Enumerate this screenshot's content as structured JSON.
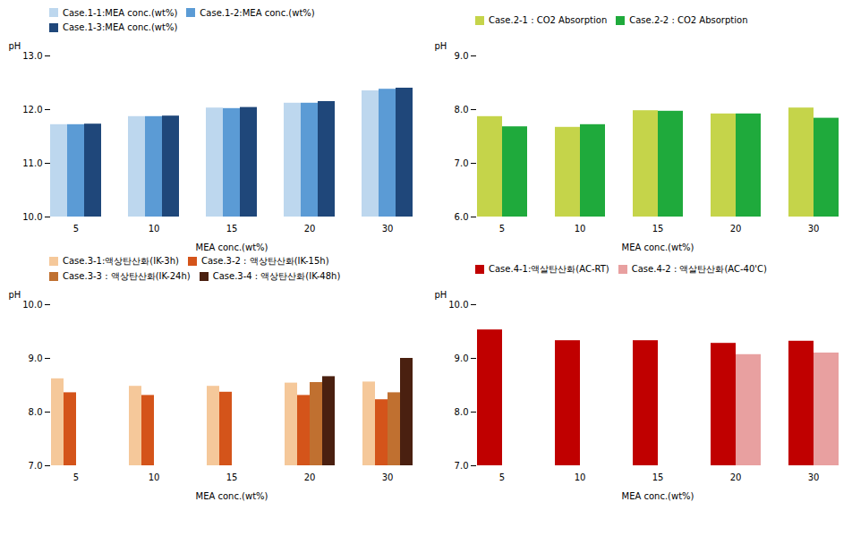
{
  "chart_data": [
    {
      "type": "bar",
      "categories": [
        5,
        10,
        15,
        20,
        30
      ],
      "series": [
        {
          "name": "Case.1-1:MEA conc.(wt%)",
          "color": "#bdd7ee",
          "values": [
            11.72,
            11.87,
            12.03,
            12.12,
            12.35
          ]
        },
        {
          "name": "Case.1-2:MEA conc.(wt%)",
          "color": "#5b9bd5",
          "values": [
            11.72,
            11.87,
            12.02,
            12.12,
            12.38
          ]
        },
        {
          "name": "Case.1-3:MEA conc.(wt%)",
          "color": "#1f477a",
          "values": [
            11.73,
            11.88,
            12.04,
            12.15,
            12.4
          ]
        }
      ],
      "ylim": [
        10,
        13
      ],
      "yticks": [
        10,
        11,
        12,
        13
      ],
      "ylabel": "pH",
      "xlabel": "MEA conc.(wt%)",
      "legend": "upper left",
      "grid": false
    },
    {
      "type": "bar",
      "categories": [
        5,
        10,
        15,
        20,
        30
      ],
      "series": [
        {
          "name": "Case.2-1 : CO2 Absorption",
          "color": "#c5d44a",
          "values": [
            7.87,
            7.67,
            7.98,
            7.92,
            8.03
          ]
        },
        {
          "name": "Case.2-2 : CO2 Absorption",
          "color": "#1faa3c",
          "values": [
            7.68,
            7.72,
            7.97,
            7.92,
            7.84
          ]
        }
      ],
      "ylim": [
        6,
        9
      ],
      "yticks": [
        6,
        7,
        8,
        9
      ],
      "ylabel": "pH",
      "xlabel": "MEA conc.(wt%)",
      "legend": "upper left",
      "grid": false
    },
    {
      "type": "bar",
      "categories": [
        5,
        10,
        15,
        20,
        30
      ],
      "series": [
        {
          "name": "Case.3-1:액상탄산화(IK-3h)",
          "color": "#f5c89a",
          "values": [
            8.62,
            8.48,
            8.48,
            8.54,
            8.56
          ]
        },
        {
          "name": "Case.3-2 : 액상탄산화(IK-15h)",
          "color": "#d4541a",
          "values": [
            8.36,
            8.31,
            8.37,
            8.31,
            8.23
          ]
        },
        {
          "name": "Case.3-3 : 액상탄산화(IK-24h)",
          "color": "#c07030",
          "values": [
            null,
            null,
            null,
            8.55,
            8.36
          ]
        },
        {
          "name": "Case.3-4 : 액상탄산화(IK-48h)",
          "color": "#4a2010",
          "values": [
            null,
            null,
            null,
            8.66,
            9.0
          ]
        }
      ],
      "ylim": [
        7,
        10
      ],
      "yticks": [
        7,
        8,
        9,
        10
      ],
      "ylabel": "pH",
      "xlabel": "MEA conc.(wt%)",
      "legend": "upper left",
      "grid": false
    },
    {
      "type": "bar",
      "categories": [
        5,
        10,
        15,
        20,
        30
      ],
      "series": [
        {
          "name": "Case.4-1:액살탄산화(AC-RT)",
          "color": "#c00000",
          "values": [
            9.53,
            9.33,
            9.33,
            9.28,
            9.32
          ]
        },
        {
          "name": "Case.4-2 : 액살탄산화(AC-40'C)",
          "color": "#e8a0a0",
          "values": [
            null,
            null,
            null,
            9.07,
            9.1
          ]
        }
      ],
      "ylim": [
        7,
        10
      ],
      "yticks": [
        7,
        8,
        9,
        10
      ],
      "ylabel": "pH",
      "xlabel": "MEA conc.(wt%)",
      "legend": "upper left",
      "grid": false
    }
  ]
}
